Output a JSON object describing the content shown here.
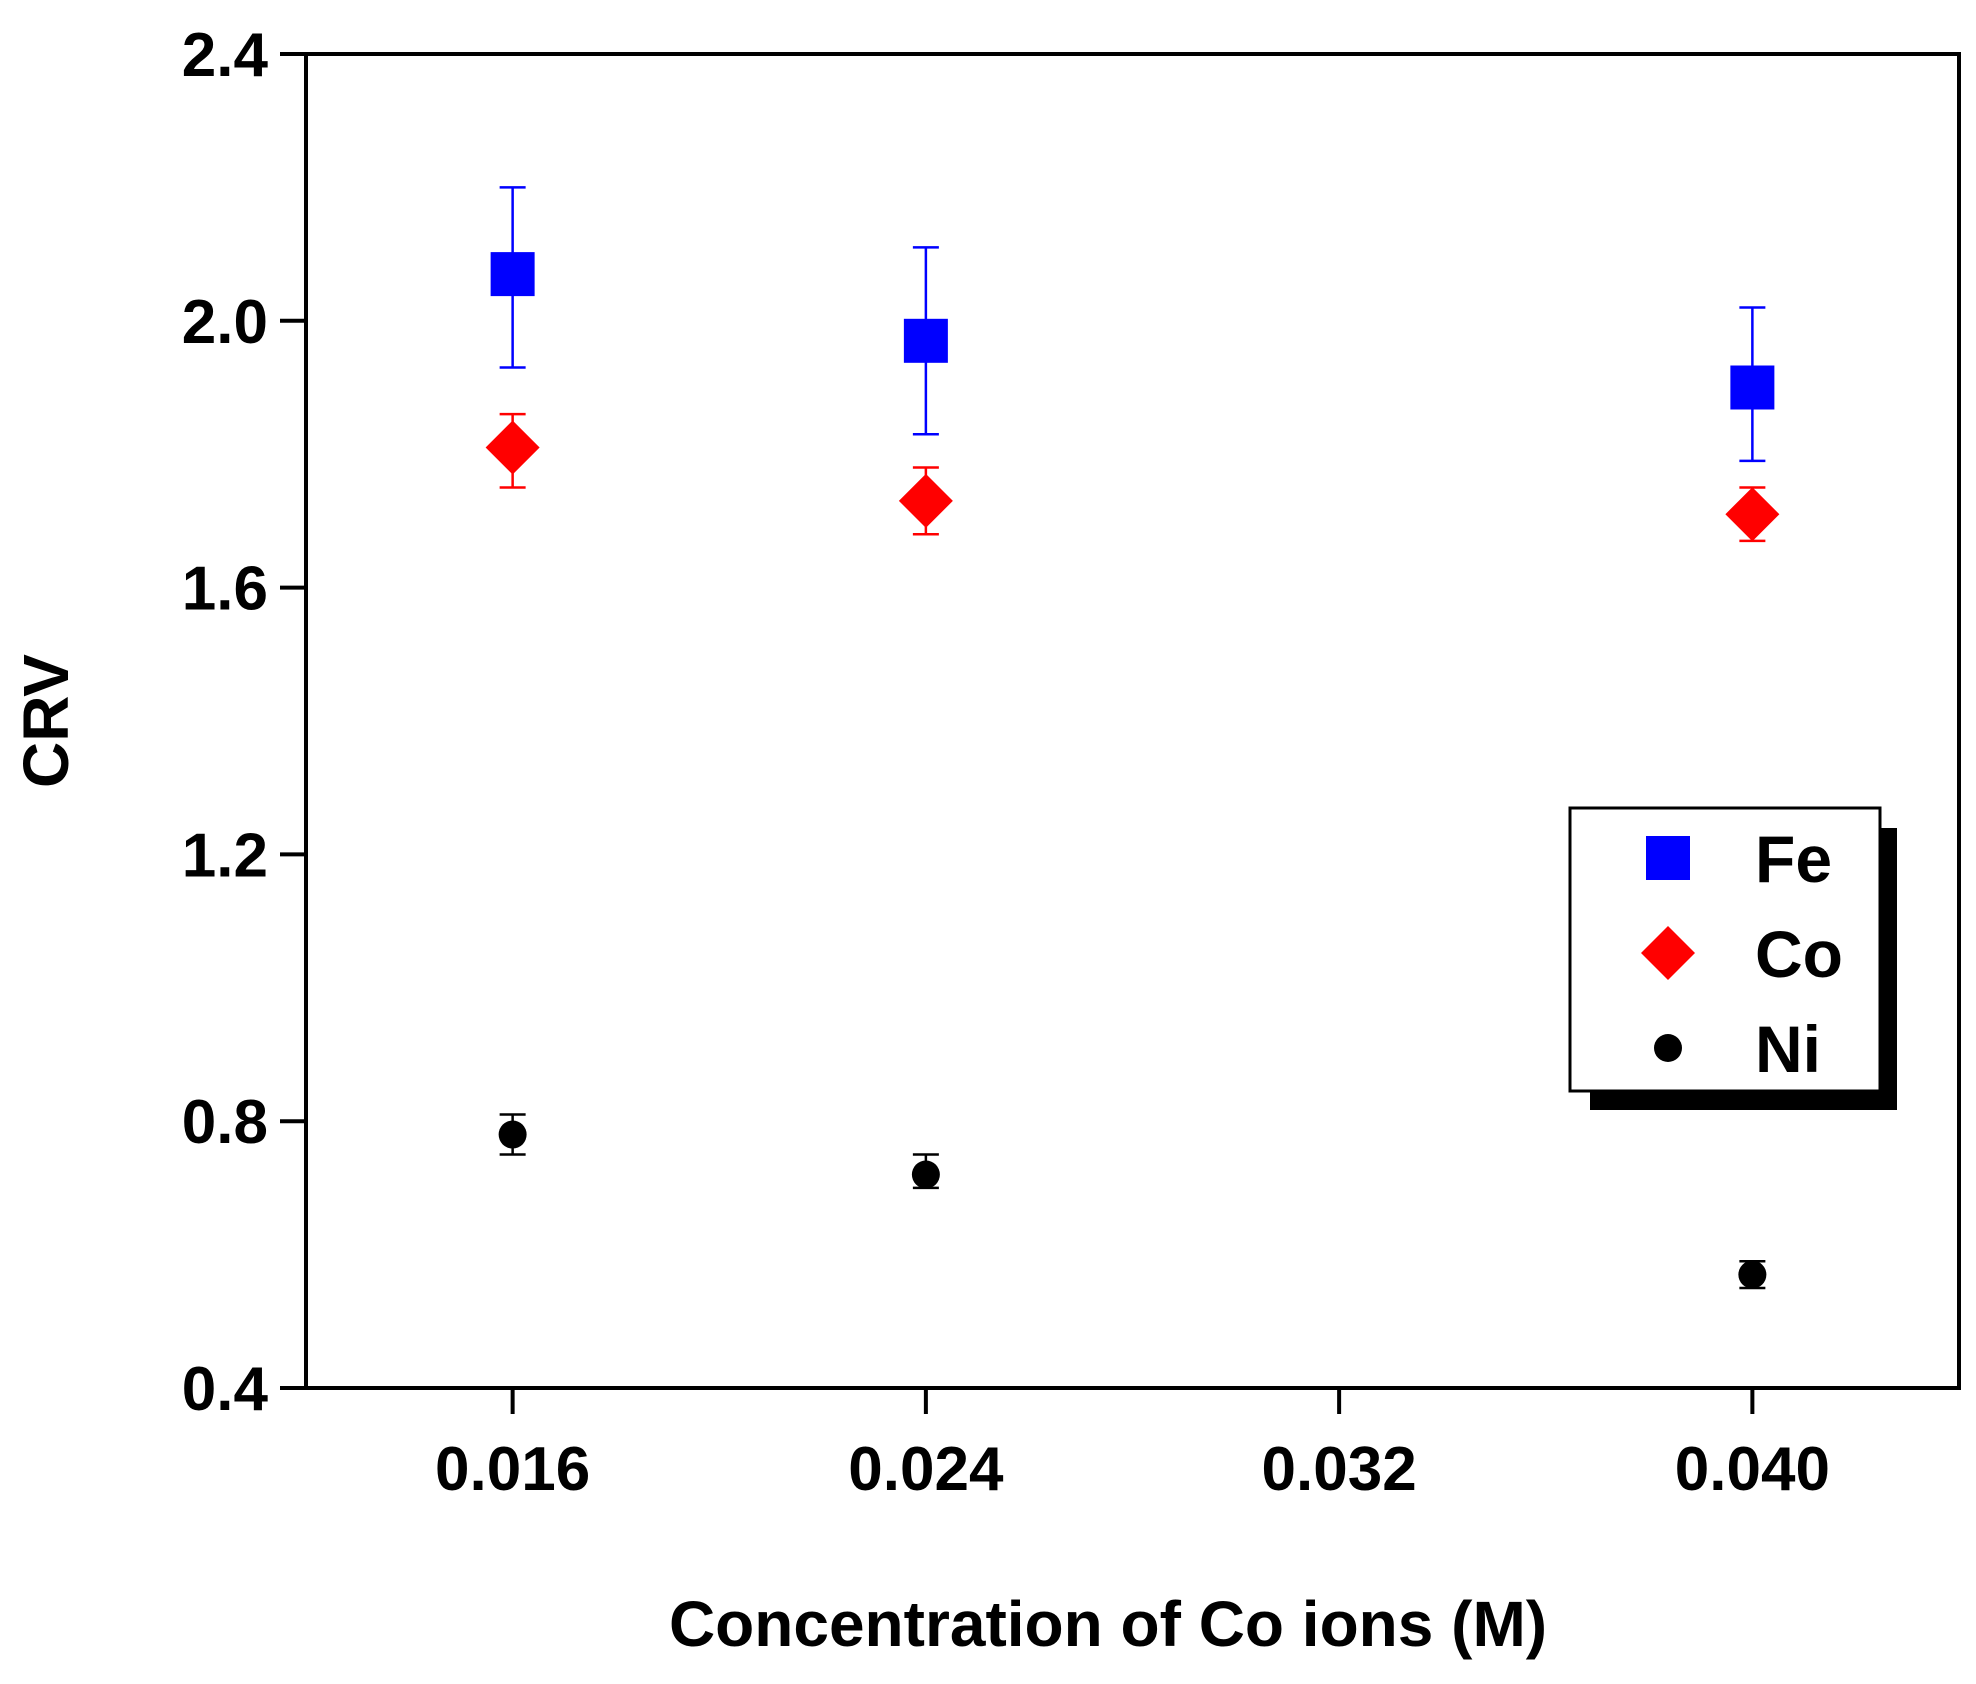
{
  "chart_data": {
    "type": "scatter",
    "title": "",
    "xlabel": "Concentration of Co ions (M)",
    "ylabel": "CRV",
    "xlim": [
      0.012,
      0.044
    ],
    "ylim": [
      0.4,
      2.4
    ],
    "x_ticks": [
      0.016,
      0.024,
      0.032,
      0.04
    ],
    "x_tick_labels": [
      "0.016",
      "0.024",
      "0.032",
      "0.040"
    ],
    "y_ticks": [
      0.4,
      0.8,
      1.2,
      1.6,
      2.0,
      2.4
    ],
    "y_tick_labels": [
      "0.4",
      "0.8",
      "1.2",
      "1.6",
      "2.0",
      "2.4"
    ],
    "grid": false,
    "legend_position": "right",
    "series": [
      {
        "name": "Fe",
        "marker": "square",
        "color": "#0000ff",
        "x": [
          0.016,
          0.024,
          0.04
        ],
        "y": [
          2.07,
          1.97,
          1.9
        ],
        "err_low": [
          0.14,
          0.14,
          0.11
        ],
        "err_high": [
          0.13,
          0.14,
          0.12
        ]
      },
      {
        "name": "Co",
        "marker": "diamond",
        "color": "#ff0000",
        "x": [
          0.016,
          0.024,
          0.04
        ],
        "y": [
          1.81,
          1.73,
          1.71
        ],
        "err_low": [
          0.06,
          0.05,
          0.04
        ],
        "err_high": [
          0.05,
          0.05,
          0.04
        ]
      },
      {
        "name": "Ni",
        "marker": "circle",
        "color": "#000000",
        "x": [
          0.016,
          0.024,
          0.04
        ],
        "y": [
          0.78,
          0.72,
          0.57
        ],
        "err_low": [
          0.03,
          0.02,
          0.02
        ],
        "err_high": [
          0.03,
          0.03,
          0.02
        ]
      }
    ]
  }
}
